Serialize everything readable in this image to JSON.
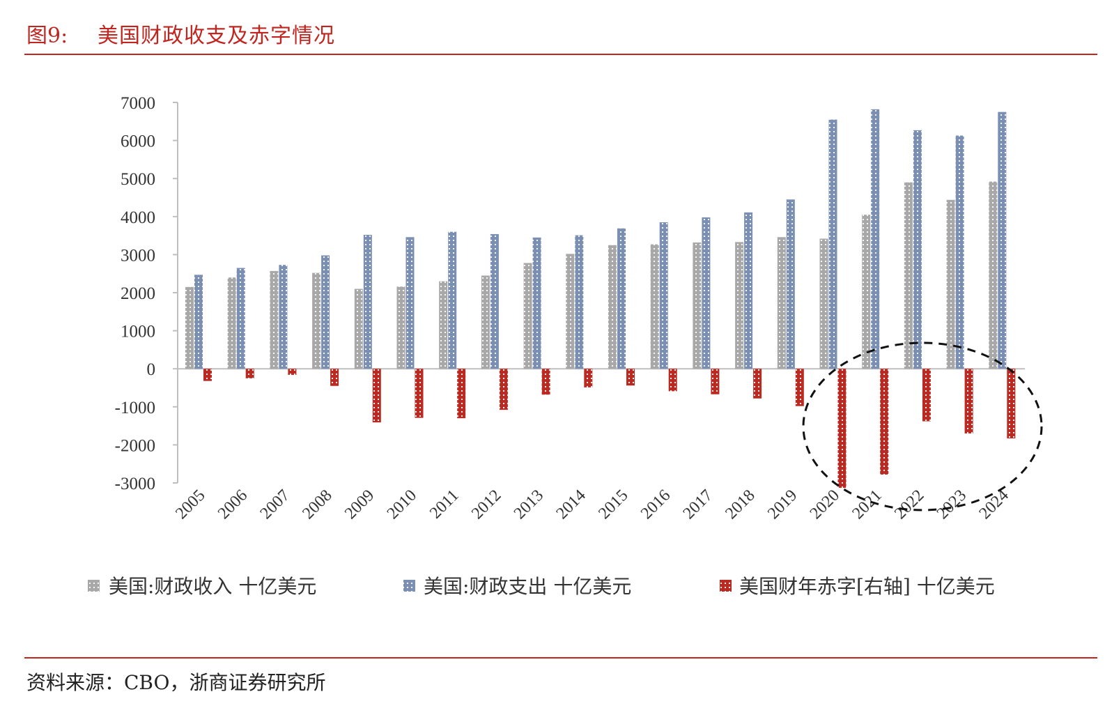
{
  "header": {
    "figure_label": "图9:",
    "title": "美国财政收支及赤字情况"
  },
  "footer": {
    "source": "资料来源：CBO，浙商证券研究所"
  },
  "colors": {
    "accent": "#c0261f",
    "revenue": "#a8a8a8",
    "spending": "#7b8fb2",
    "deficit": "#b82a22"
  },
  "chart_data": {
    "type": "bar",
    "categories": [
      "2005",
      "2006",
      "2007",
      "2008",
      "2009",
      "2010",
      "2011",
      "2012",
      "2013",
      "2014",
      "2015",
      "2016",
      "2017",
      "2018",
      "2019",
      "2020",
      "2021",
      "2022",
      "2023",
      "2024"
    ],
    "series": [
      {
        "name": "美国:财政收入 十亿美元",
        "color_key": "revenue",
        "values": [
          2150,
          2400,
          2570,
          2520,
          2100,
          2160,
          2300,
          2450,
          2780,
          3020,
          3250,
          3270,
          3320,
          3330,
          3460,
          3420,
          4050,
          4900,
          4440,
          4920
        ]
      },
      {
        "name": "美国:财政支出 十亿美元",
        "color_key": "spending",
        "values": [
          2470,
          2650,
          2730,
          2980,
          3520,
          3460,
          3600,
          3540,
          3450,
          3510,
          3690,
          3850,
          3980,
          4110,
          4450,
          6550,
          6820,
          6270,
          6130,
          6750
        ]
      },
      {
        "name": "美国财年赤字[右轴] 十亿美元",
        "color_key": "deficit",
        "values": [
          -320,
          -250,
          -160,
          -450,
          -1410,
          -1290,
          -1300,
          -1080,
          -680,
          -490,
          -440,
          -590,
          -670,
          -780,
          -980,
          -3130,
          -2780,
          -1380,
          -1700,
          -1830
        ]
      }
    ],
    "ylim": [
      -3000,
      7000
    ],
    "yticks": [
      7000,
      6000,
      5000,
      4000,
      3000,
      2000,
      1000,
      0,
      -1000,
      -2000,
      -3000
    ],
    "legend_position": "bottom",
    "annotation": "dashed-ellipse-around-2020-2024"
  }
}
